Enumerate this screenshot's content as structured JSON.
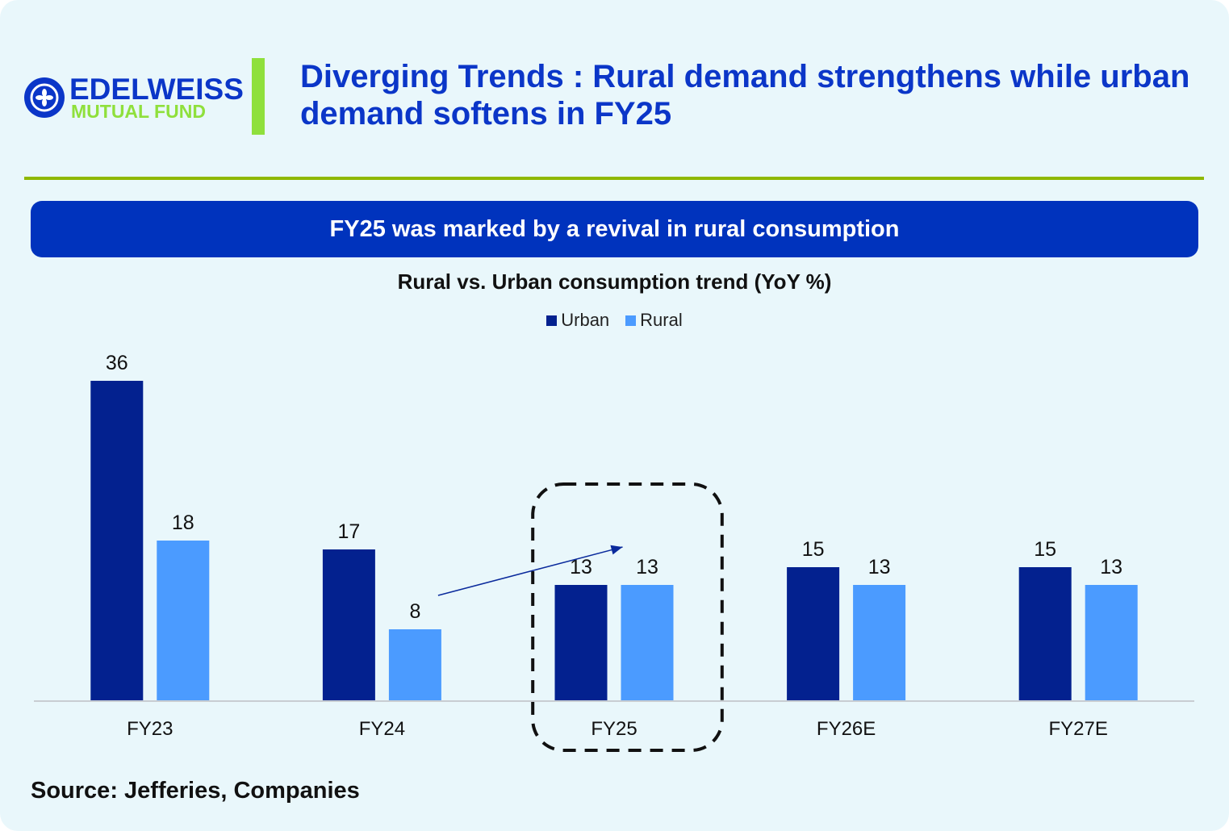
{
  "logo": {
    "line1": "EDELWEISS",
    "line2": "MUTUAL FUND",
    "icon": "edelweiss-flower-logo-icon",
    "colors": {
      "blue": "#0b36c8",
      "green": "#8fe03c"
    }
  },
  "header": {
    "title": "Diverging Trends : Rural demand strengthens while urban demand softens in FY25"
  },
  "banner": {
    "text": "FY25 was marked by a revival in rural consumption",
    "color": "#0033bd"
  },
  "source": "Source: Jefferies, Companies",
  "chart_data": {
    "type": "bar",
    "title": "Rural vs. Urban consumption trend (YoY %)",
    "categories": [
      "FY23",
      "FY24",
      "FY25",
      "FY26E",
      "FY27E"
    ],
    "series": [
      {
        "name": "Urban",
        "values": [
          36,
          17,
          13,
          15,
          15
        ],
        "color": "#03218f"
      },
      {
        "name": "Rural",
        "values": [
          18,
          8,
          13,
          13,
          13
        ],
        "color": "#4b9bff"
      }
    ],
    "ylim": [
      0,
      36
    ],
    "grid": false,
    "legend": "top-center",
    "highlight": {
      "category": "FY25",
      "style": "dashed-rounded-box"
    },
    "annotation": {
      "type": "arrow",
      "from": {
        "category": "FY24",
        "series": "Rural"
      },
      "to": {
        "category": "FY25",
        "series": "Rural"
      }
    }
  }
}
